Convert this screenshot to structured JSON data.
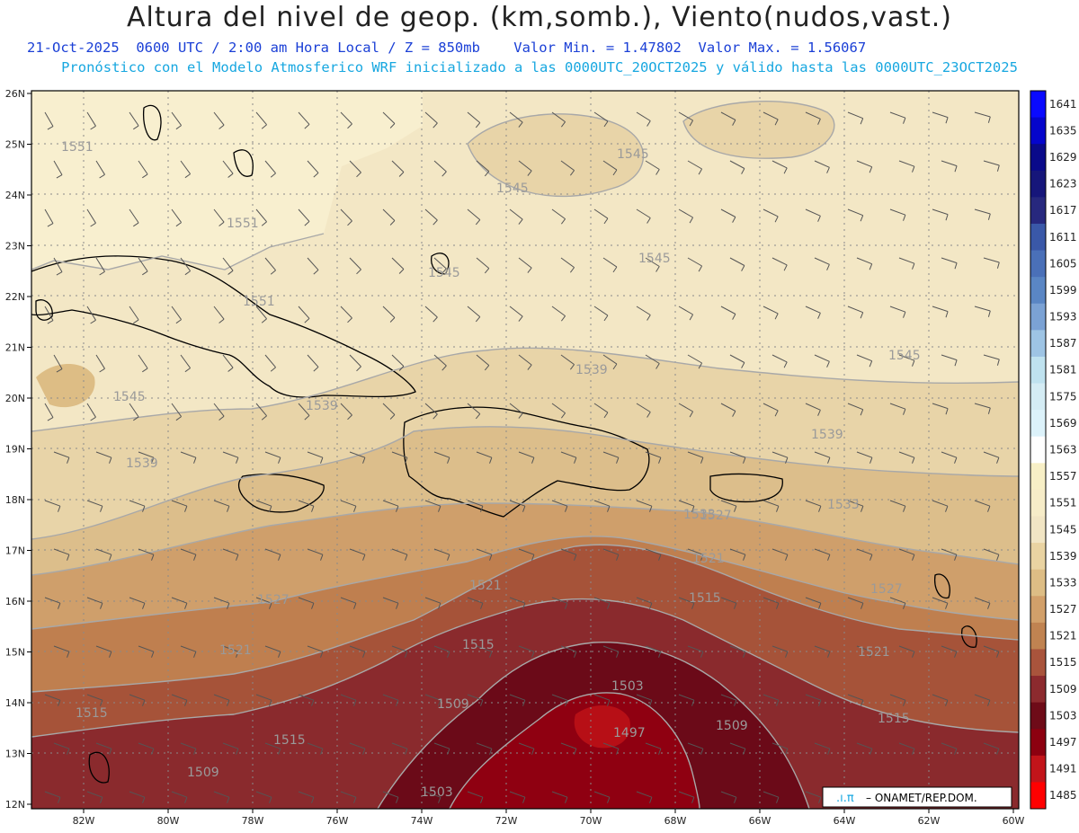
{
  "header": {
    "title": "Altura del nivel de geop. (km,somb.), Viento(nudos,vast.)",
    "line1": "21-Oct-2025  0600 UTC / 2:00 am Hora Local / Z = 850mb    Valor Min. = 1.47802  Valor Max. = 1.56067",
    "line2": "Pronóstico con el Modelo Atmosferico WRF inicializado a las 0000UTC_20OCT2025 y válido hasta las  0000UTC_23OCT2025"
  },
  "axes": {
    "lat_labels": [
      "26N",
      "25N",
      "24N",
      "23N",
      "22N",
      "21N",
      "20N",
      "19N",
      "18N",
      "17N",
      "16N",
      "15N",
      "14N",
      "13N",
      "12N"
    ],
    "lon_labels": [
      "82W",
      "80W",
      "78W",
      "76W",
      "74W",
      "72W",
      "70W",
      "68W",
      "66W",
      "64W",
      "62W",
      "60W"
    ]
  },
  "colorbar": {
    "labels": [
      "1641",
      "1635",
      "1629",
      "1623",
      "1617",
      "1611",
      "1605",
      "1599",
      "1593",
      "1587",
      "1581",
      "1575",
      "1569",
      "1563",
      "1557",
      "1551",
      "1545",
      "1539",
      "1533",
      "1527",
      "1521",
      "1515",
      "1509",
      "1503",
      "1497",
      "1491",
      "1485"
    ],
    "colors": [
      "#0a0aff",
      "#0505cc",
      "#0a0a8a",
      "#16167a",
      "#27287e",
      "#3a58a8",
      "#4a70b8",
      "#5a86c4",
      "#7ba2d4",
      "#9ec4e4",
      "#bfe2ef",
      "#d4ecf4",
      "#dcf2fa",
      "#ffffff",
      "#f7efc6",
      "#f6ecc8",
      "#f1e5c4",
      "#e9d3a2",
      "#ddbd85",
      "#d2a06a",
      "#c08351",
      "#a9543c",
      "#8c2a2e",
      "#6e0b18",
      "#8c0010",
      "#c2141a",
      "#ff0000"
    ]
  },
  "contour_labels": [
    {
      "text": "1551"
    },
    {
      "text": "1551"
    },
    {
      "text": "1551"
    },
    {
      "text": "1545"
    },
    {
      "text": "1545"
    },
    {
      "text": "1545"
    },
    {
      "text": "1545"
    },
    {
      "text": "1545"
    },
    {
      "text": "1545"
    },
    {
      "text": "1539"
    },
    {
      "text": "1539"
    },
    {
      "text": "1539"
    },
    {
      "text": "1539"
    },
    {
      "text": "1533"
    },
    {
      "text": "1533"
    },
    {
      "text": "1527"
    },
    {
      "text": "1527"
    },
    {
      "text": "1527"
    },
    {
      "text": "1521"
    },
    {
      "text": "1521"
    },
    {
      "text": "1521"
    },
    {
      "text": "1521"
    },
    {
      "text": "1515"
    },
    {
      "text": "1515"
    },
    {
      "text": "1515"
    },
    {
      "text": "1515"
    },
    {
      "text": "1515"
    },
    {
      "text": "1509"
    },
    {
      "text": "1509"
    },
    {
      "text": "1509"
    },
    {
      "text": "1503"
    },
    {
      "text": "1503"
    },
    {
      "text": "1497"
    }
  ],
  "credit": "ONAMET/REP.DOM.",
  "credit_logo": ".ı.π"
}
